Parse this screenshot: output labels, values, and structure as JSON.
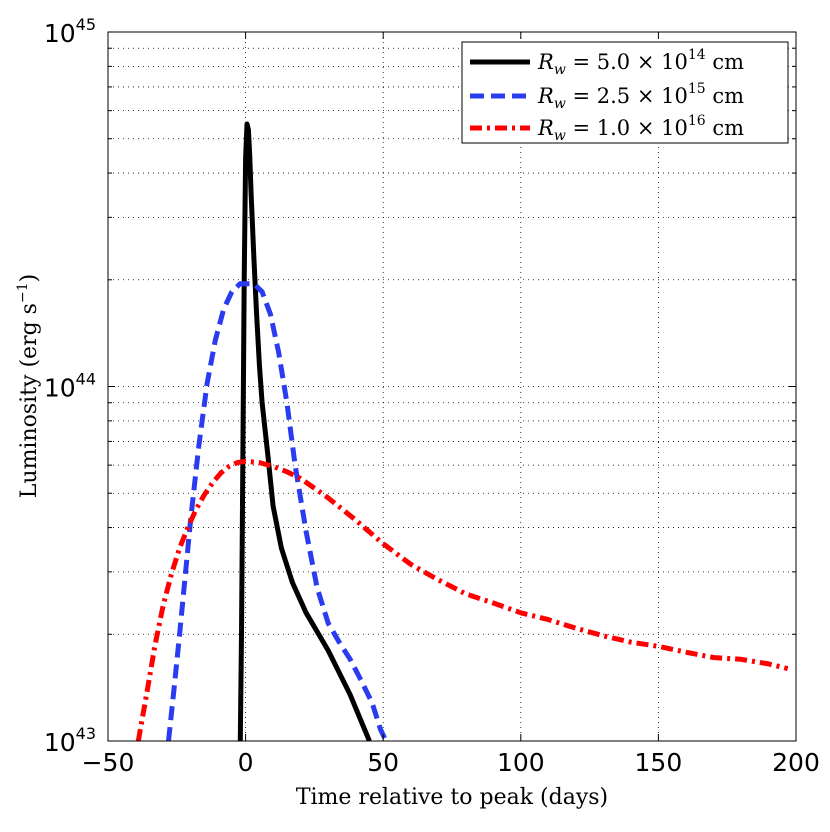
{
  "chart_data": {
    "type": "line",
    "xlabel": "Time relative to peak (days)",
    "ylabel": {
      "text": "Luminosity (erg s",
      "sup": "−1",
      "close": ")"
    },
    "xlim": [
      -50,
      200
    ],
    "ylim": [
      1e+43,
      1e+45
    ],
    "yscale": "log",
    "grid": true,
    "legend_position": "top-right",
    "x_ticks": [
      {
        "value": -50,
        "label": "−50"
      },
      {
        "value": 0,
        "label": "0"
      },
      {
        "value": 50,
        "label": "50"
      },
      {
        "value": 100,
        "label": "100"
      },
      {
        "value": 150,
        "label": "150"
      },
      {
        "value": 200,
        "label": "200"
      }
    ],
    "y_ticks": [
      {
        "value": 1e+43,
        "base": "10",
        "exp": "43"
      },
      {
        "value": 1e+44,
        "base": "10",
        "exp": "44"
      },
      {
        "value": 1e+45,
        "base": "10",
        "exp": "45"
      }
    ],
    "series": [
      {
        "name": "R_w = 5.0 × 10^14 cm",
        "label_parts": {
          "sym": "R",
          "sub": "w",
          "eq": " = 5.0 × 10",
          "sup": "14",
          "unit": " cm"
        },
        "color": "#000000",
        "style": "solid",
        "x": [
          -2,
          -1.5,
          -1,
          -0.5,
          0,
          0.5,
          1,
          1.5,
          2,
          3,
          4,
          5,
          6,
          8,
          10,
          13,
          17,
          22,
          30,
          38,
          45
        ],
        "y": [
          9e+42,
          2e+43,
          6e+43,
          2e+44,
          4.4e+44,
          5.5e+44,
          5.3e+44,
          4.5e+44,
          3.5e+44,
          2.3e+44,
          1.6e+44,
          1.15e+44,
          9e+43,
          6.5e+43,
          4.6e+43,
          3.5e+43,
          2.8e+43,
          2.3e+43,
          1.8e+43,
          1.35e+43,
          1e+43
        ]
      },
      {
        "name": "R_w = 2.5 × 10^15 cm",
        "label_parts": {
          "sym": "R",
          "sub": "w",
          "eq": " = 2.5 × 10",
          "sup": "15",
          "unit": " cm"
        },
        "color": "#2b3cf0",
        "style": "dashed",
        "x": [
          -28,
          -26,
          -24,
          -22,
          -20,
          -17,
          -14,
          -11,
          -8,
          -5,
          -2,
          0,
          3,
          6,
          9,
          12,
          15,
          18,
          22,
          26,
          30,
          34,
          38,
          42,
          46,
          49,
          51
        ],
        "y": [
          1e+43,
          1.4e+43,
          2e+43,
          2.9e+43,
          4.2e+43,
          6.8e+43,
          1.02e+44,
          1.35e+44,
          1.65e+44,
          1.85e+44,
          1.95e+44,
          1.95e+44,
          1.95e+44,
          1.85e+44,
          1.6e+44,
          1.25e+44,
          9e+43,
          6e+43,
          3.9e+43,
          2.7e+43,
          2.15e+43,
          1.9e+43,
          1.7e+43,
          1.48e+43,
          1.28e+43,
          1.08e+43,
          1e+43
        ]
      },
      {
        "name": "R_w = 1.0 × 10^16 cm",
        "label_parts": {
          "sym": "R",
          "sub": "w",
          "eq": " = 1.0 × 10",
          "sup": "16",
          "unit": " cm"
        },
        "color": "#ff0000",
        "style": "dashdot",
        "x": [
          -39,
          -36,
          -33,
          -30,
          -27,
          -24,
          -21,
          -18,
          -15,
          -12,
          -9,
          -6,
          -3,
          0,
          5,
          10,
          15,
          20,
          30,
          40,
          50,
          60,
          70,
          80,
          90,
          100,
          110,
          120,
          130,
          140,
          150,
          160,
          170,
          180,
          190,
          197
        ],
        "y": [
          1e+43,
          1.35e+43,
          1.85e+43,
          2.4e+43,
          2.95e+43,
          3.5e+43,
          4e+43,
          4.5e+43,
          4.95e+43,
          5.35e+43,
          5.7e+43,
          5.95e+43,
          6.1e+43,
          6.15e+43,
          6.1e+43,
          5.95e+43,
          5.75e+43,
          5.5e+43,
          4.85e+43,
          4.2e+43,
          3.6e+43,
          3.15e+43,
          2.85e+43,
          2.6e+43,
          2.45e+43,
          2.3e+43,
          2.2e+43,
          2.08e+43,
          1.98e+43,
          1.9e+43,
          1.85e+43,
          1.78e+43,
          1.72e+43,
          1.7e+43,
          1.65e+43,
          1.6e+43
        ]
      }
    ]
  }
}
